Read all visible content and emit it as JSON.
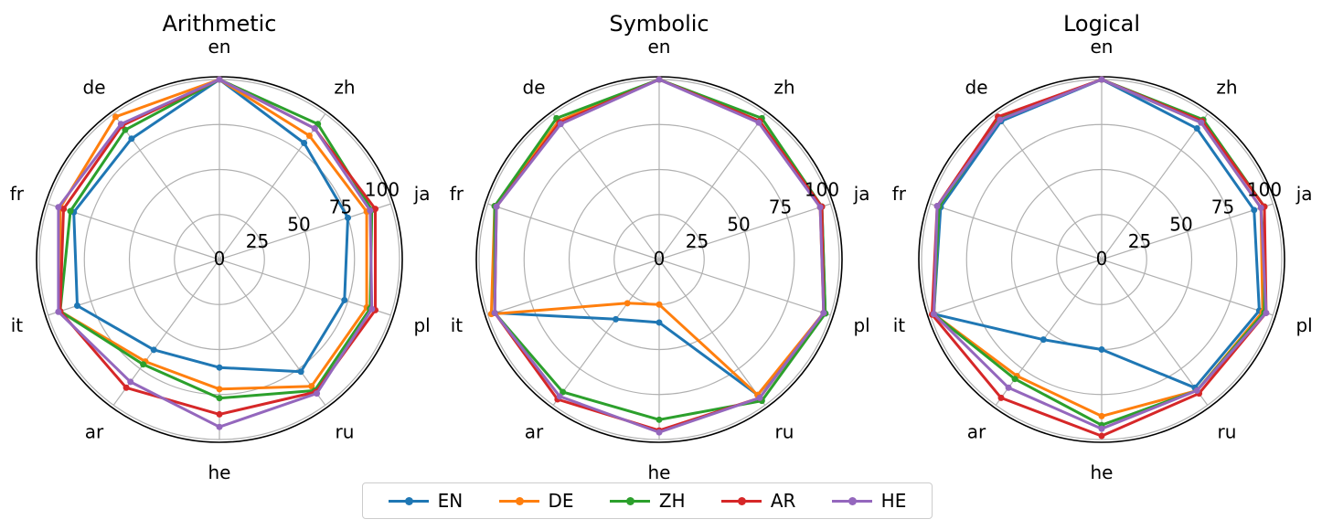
{
  "chart_data": [
    {
      "type": "radar",
      "title": "Arithmetic",
      "categories": [
        "en",
        "zh",
        "ja",
        "pl",
        "ru",
        "he",
        "ar",
        "it",
        "fr",
        "de"
      ],
      "radial_ticks": [
        "0",
        "25",
        "50",
        "75",
        "100"
      ],
      "rlim": [
        0,
        100
      ],
      "series": [
        {
          "name": "EN",
          "values": [
            100,
            80,
            75,
            73,
            77,
            60,
            62,
            83,
            85,
            83
          ]
        },
        {
          "name": "DE",
          "values": [
            100,
            85,
            86,
            86,
            87,
            72,
            70,
            93,
            93,
            98
          ]
        },
        {
          "name": "ZH",
          "values": [
            100,
            93,
            89,
            88,
            90,
            77,
            72,
            93,
            87,
            89
          ]
        },
        {
          "name": "AR",
          "values": [
            100,
            90,
            91,
            91,
            91,
            86,
            88,
            93,
            91,
            92
          ]
        },
        {
          "name": "HE",
          "values": [
            100,
            90,
            88,
            89,
            92,
            93,
            84,
            94,
            94,
            93
          ]
        }
      ]
    },
    {
      "type": "radar",
      "title": "Symbolic",
      "categories": [
        "en",
        "zh",
        "ja",
        "pl",
        "ru",
        "he",
        "ar",
        "it",
        "fr",
        "de"
      ],
      "radial_ticks": [
        "0",
        "25",
        "50",
        "75",
        "100"
      ],
      "rlim": [
        0,
        100
      ],
      "series": [
        {
          "name": "EN",
          "values": [
            100,
            95,
            95,
            97,
            93,
            35,
            41,
            96,
            96,
            95
          ]
        },
        {
          "name": "DE",
          "values": [
            100,
            95,
            94,
            96,
            93,
            25,
            30,
            98,
            96,
            95
          ]
        },
        {
          "name": "ZH",
          "values": [
            100,
            97,
            95,
            97,
            97,
            89,
            91,
            96,
            96,
            97
          ]
        },
        {
          "name": "AR",
          "values": [
            100,
            95,
            95,
            96,
            95,
            95,
            96,
            96,
            95,
            94
          ]
        },
        {
          "name": "HE",
          "values": [
            100,
            94,
            94,
            96,
            95,
            96,
            94,
            96,
            95,
            93
          ]
        }
      ]
    },
    {
      "type": "radar",
      "title": "Logical",
      "categories": [
        "en",
        "zh",
        "ja",
        "pl",
        "ru",
        "he",
        "ar",
        "it",
        "fr",
        "de"
      ],
      "radial_ticks": [
        "0",
        "25",
        "50",
        "75",
        "100"
      ],
      "rlim": [
        0,
        100
      ],
      "series": [
        {
          "name": "EN",
          "values": [
            100,
            90,
            89,
            92,
            88,
            50,
            55,
            98,
            94,
            95
          ]
        },
        {
          "name": "DE",
          "values": [
            100,
            94,
            93,
            94,
            90,
            87,
            80,
            98,
            95,
            97
          ]
        },
        {
          "name": "ZH",
          "values": [
            100,
            96,
            95,
            95,
            90,
            92,
            82,
            98,
            95,
            97
          ]
        },
        {
          "name": "AR",
          "values": [
            100,
            95,
            95,
            96,
            92,
            98,
            95,
            99,
            96,
            98
          ]
        },
        {
          "name": "HE",
          "values": [
            100,
            94,
            93,
            96,
            90,
            94,
            88,
            98,
            96,
            96
          ]
        }
      ]
    }
  ],
  "legend": {
    "placement": "bottom-center",
    "entries": [
      {
        "name": "EN",
        "color": "#1f77b4"
      },
      {
        "name": "DE",
        "color": "#ff7f0e"
      },
      {
        "name": "ZH",
        "color": "#2ca02c"
      },
      {
        "name": "AR",
        "color": "#d62728"
      },
      {
        "name": "HE",
        "color": "#9467bd"
      }
    ]
  }
}
